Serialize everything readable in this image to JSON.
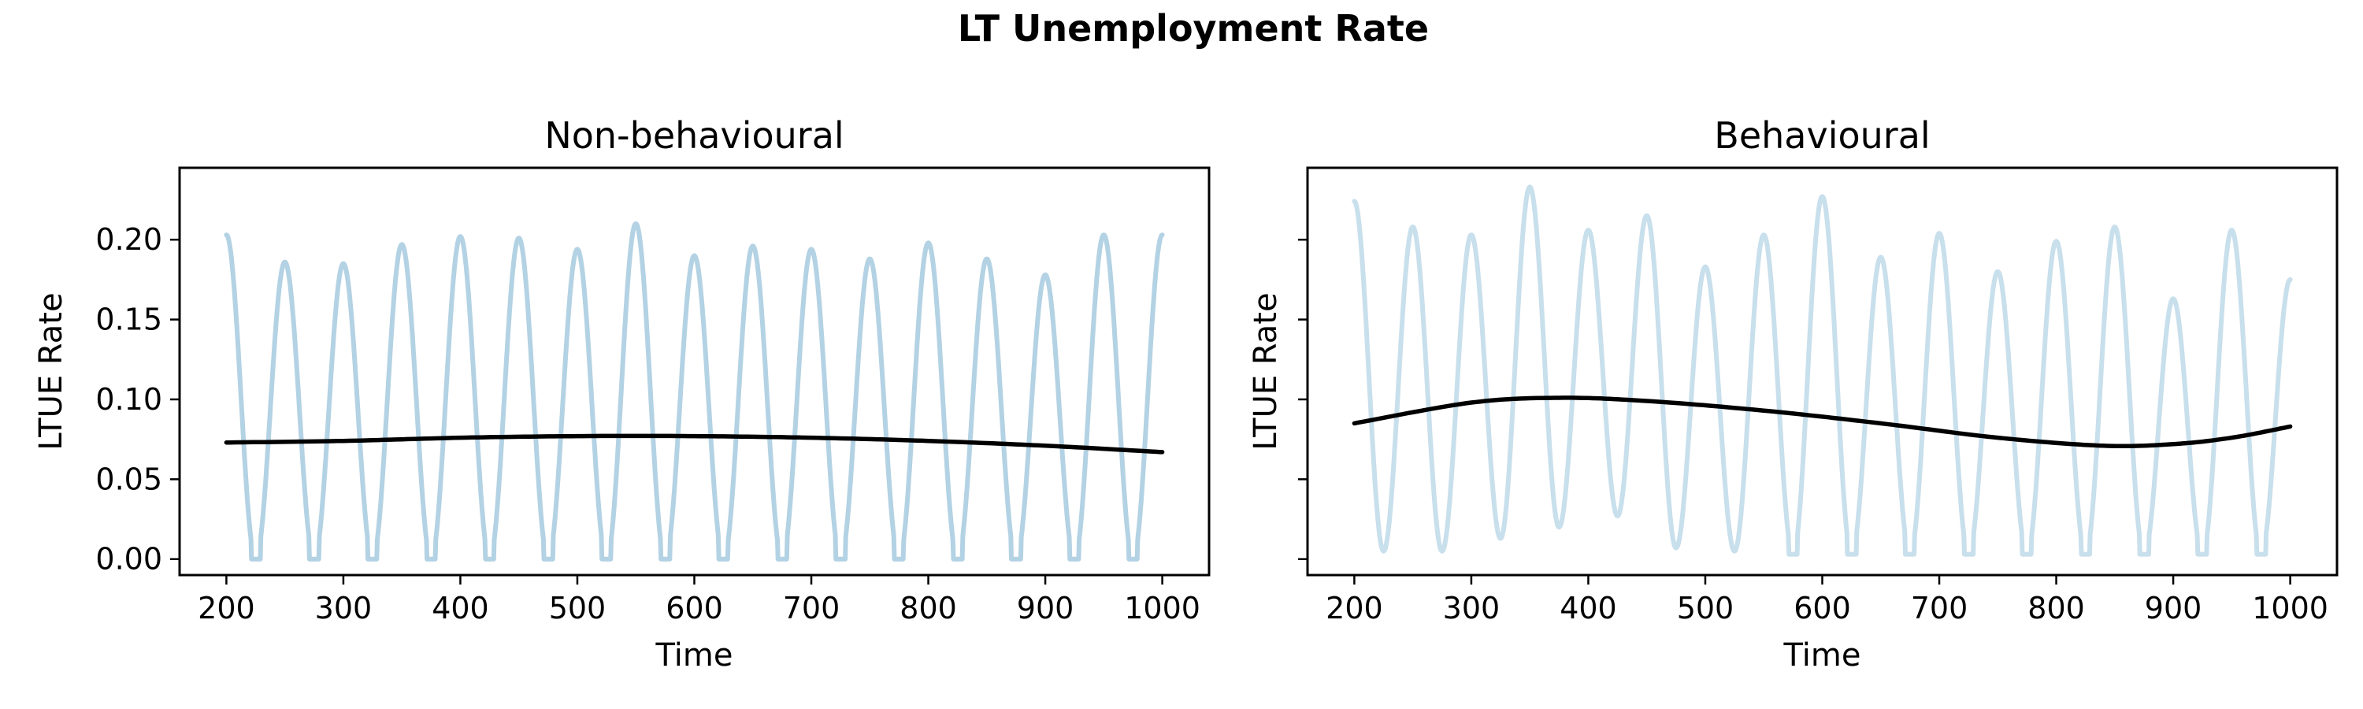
{
  "figure": {
    "title": "LT Unemployment Rate"
  },
  "colors": {
    "raw_left": "#b3d2e4",
    "raw_right": "#c8dfec",
    "trend": "#000000"
  },
  "chart_data": [
    {
      "type": "line",
      "title": "Non-behavioural",
      "xlabel": "Time",
      "ylabel": "LTUE Rate",
      "xlim": [
        160,
        1040
      ],
      "ylim": [
        -0.01,
        0.245
      ],
      "xticks": [
        200,
        300,
        400,
        500,
        600,
        700,
        800,
        900,
        1000
      ],
      "yticks": [
        0.0,
        0.05,
        0.1,
        0.15,
        0.2
      ],
      "ytick_labels": [
        "0.00",
        "0.05",
        "0.10",
        "0.15",
        "0.20"
      ],
      "grid": false,
      "series": [
        {
          "role": "raw",
          "period": 50,
          "first_peak_x": 200,
          "peaks": [
            0.203,
            0.186,
            0.185,
            0.197,
            0.202,
            0.201,
            0.194,
            0.21,
            0.19,
            0.196,
            0.194,
            0.188,
            0.198,
            0.188,
            0.178,
            0.203
          ],
          "troughs": [
            0.0,
            0.0,
            0.0,
            0.0,
            0.0,
            0.0,
            0.0,
            0.0,
            0.0,
            0.0,
            0.0,
            0.0,
            0.0,
            0.0,
            0.0
          ]
        },
        {
          "role": "trend",
          "x": [
            200,
            300,
            400,
            500,
            600,
            700,
            800,
            900,
            1000
          ],
          "y": [
            0.073,
            0.074,
            0.076,
            0.077,
            0.077,
            0.076,
            0.074,
            0.071,
            0.067
          ]
        }
      ]
    },
    {
      "type": "line",
      "title": "Behavioural",
      "xlabel": "Time",
      "ylabel": "LTUE Rate",
      "xlim": [
        160,
        1040
      ],
      "ylim": [
        -0.01,
        0.245
      ],
      "xticks": [
        200,
        300,
        400,
        500,
        600,
        700,
        800,
        900,
        1000
      ],
      "yticks": [
        0.0,
        0.05,
        0.1,
        0.15,
        0.2
      ],
      "ytick_labels": [
        "",
        "",
        "",
        "",
        ""
      ],
      "grid": false,
      "series": [
        {
          "role": "raw",
          "period": 50,
          "first_peak_x": 200,
          "peaks": [
            0.224,
            0.208,
            0.203,
            0.233,
            0.206,
            0.215,
            0.183,
            0.203,
            0.227,
            0.189,
            0.204,
            0.18,
            0.199,
            0.208,
            0.163,
            0.206,
            0.175
          ],
          "troughs": [
            0.005,
            0.005,
            0.013,
            0.02,
            0.027,
            0.007,
            0.005,
            0.003,
            0.003,
            0.003,
            0.003,
            0.003,
            0.003,
            0.003,
            0.003,
            0.003
          ]
        },
        {
          "role": "trend",
          "x": [
            200,
            300,
            375,
            450,
            550,
            650,
            750,
            840,
            900,
            950,
            1000
          ],
          "y": [
            0.085,
            0.098,
            0.101,
            0.099,
            0.093,
            0.085,
            0.076,
            0.071,
            0.072,
            0.076,
            0.083
          ]
        }
      ]
    }
  ]
}
